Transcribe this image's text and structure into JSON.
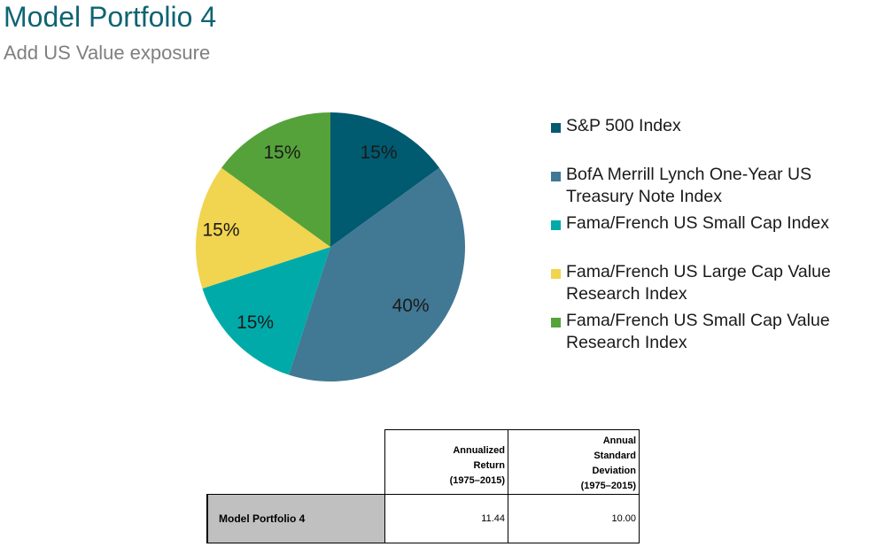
{
  "header": {
    "title": "Model Portfolio 4",
    "subtitle": "Add US Value exposure"
  },
  "chart_data": {
    "type": "pie",
    "title": "",
    "slices": [
      {
        "name": "S&P 500 Index",
        "value": 15,
        "label": "15%",
        "color": "#005a70"
      },
      {
        "name": "BofA Merrill Lynch One-Year US Treasury Note Index",
        "value": 40,
        "label": "40%",
        "color": "#417894"
      },
      {
        "name": "Fama/French US Small Cap Index",
        "value": 15,
        "label": "15%",
        "color": "#00aaa9"
      },
      {
        "name": "Fama/French US Large Cap Value Research Index",
        "value": 15,
        "label": "15%",
        "color": "#f1d44f"
      },
      {
        "name": "Fama/French US Small Cap Value Research Index",
        "value": 15,
        "label": "15%",
        "color": "#55a23a"
      }
    ],
    "legend": {
      "placement": "right",
      "entries": [
        {
          "lines": [
            "S&P 500 Index"
          ],
          "color": "#005a70"
        },
        {
          "lines": [
            "BofA Merrill Lynch One-Year US",
            "Treasury Note Index"
          ],
          "color": "#417894"
        },
        {
          "lines": [
            "Fama/French US Small Cap Index"
          ],
          "color": "#00aaa9"
        },
        {
          "lines": [
            "Fama/French US Large Cap Value",
            "Research Index"
          ],
          "color": "#f1d44f"
        },
        {
          "lines": [
            "Fama/French US Small Cap Value",
            "Research Index"
          ],
          "color": "#55a23a"
        }
      ]
    }
  },
  "table": {
    "headers": [
      {
        "lines": [
          "Annualized",
          "Return",
          "(1975–2015)"
        ]
      },
      {
        "lines": [
          "Annual",
          "Standard",
          "Deviation",
          "(1975–2015)"
        ]
      }
    ],
    "rows": [
      {
        "label": "Model Portfolio 4",
        "values": [
          "11.44",
          "10.00"
        ]
      }
    ]
  }
}
